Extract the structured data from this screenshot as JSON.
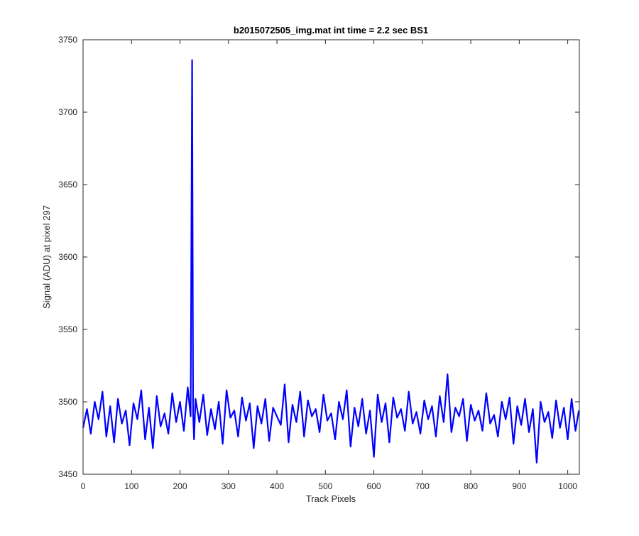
{
  "chart_data": {
    "type": "line",
    "title": "b2015072505_img.mat int time = 2.2 sec   BS1",
    "xlabel": "Track Pixels",
    "ylabel": "Signal (ADU) at pixel 297",
    "xlim": [
      0,
      1024
    ],
    "ylim": [
      3450,
      3750
    ],
    "xticks": [
      "0",
      "100",
      "200",
      "300",
      "400",
      "500",
      "600",
      "700",
      "800",
      "900",
      "1000"
    ],
    "yticks": [
      "3450",
      "3500",
      "3550",
      "3600",
      "3650",
      "3700",
      "3750"
    ],
    "grid": false,
    "legend": "none",
    "series": [
      {
        "color": "#0000ff",
        "x": [
          0,
          8,
          16,
          24,
          32,
          40,
          48,
          56,
          64,
          72,
          80,
          88,
          96,
          104,
          112,
          120,
          128,
          136,
          144,
          152,
          160,
          168,
          176,
          184,
          192,
          200,
          208,
          216,
          222,
          225,
          227,
          229,
          232,
          240,
          248,
          256,
          264,
          272,
          280,
          288,
          296,
          304,
          312,
          320,
          328,
          336,
          344,
          352,
          360,
          368,
          376,
          384,
          392,
          400,
          408,
          416,
          424,
          432,
          440,
          448,
          456,
          464,
          472,
          480,
          488,
          496,
          504,
          512,
          520,
          528,
          536,
          544,
          552,
          560,
          568,
          576,
          584,
          592,
          600,
          608,
          616,
          624,
          632,
          640,
          648,
          656,
          664,
          672,
          680,
          688,
          696,
          704,
          712,
          720,
          728,
          736,
          744,
          752,
          760,
          768,
          776,
          784,
          792,
          800,
          808,
          816,
          824,
          832,
          840,
          848,
          856,
          864,
          872,
          880,
          888,
          896,
          904,
          912,
          920,
          928,
          936,
          944,
          952,
          960,
          968,
          976,
          984,
          992,
          1000,
          1008,
          1016,
          1023
        ],
        "y": [
          3482,
          3495,
          3478,
          3500,
          3488,
          3507,
          3476,
          3497,
          3472,
          3502,
          3485,
          3494,
          3470,
          3499,
          3488,
          3508,
          3474,
          3496,
          3468,
          3504,
          3483,
          3492,
          3478,
          3506,
          3486,
          3500,
          3480,
          3510,
          3490,
          3736,
          3492,
          3474,
          3502,
          3486,
          3505,
          3477,
          3495,
          3481,
          3500,
          3471,
          3508,
          3489,
          3494,
          3476,
          3503,
          3487,
          3499,
          3468,
          3497,
          3485,
          3502,
          3473,
          3496,
          3490,
          3484,
          3512,
          3472,
          3498,
          3486,
          3507,
          3476,
          3501,
          3490,
          3495,
          3479,
          3505,
          3487,
          3492,
          3474,
          3500,
          3488,
          3508,
          3469,
          3496,
          3483,
          3502,
          3478,
          3494,
          3462,
          3505,
          3486,
          3499,
          3472,
          3503,
          3489,
          3495,
          3480,
          3507,
          3485,
          3493,
          3478,
          3501,
          3488,
          3497,
          3476,
          3504,
          3486,
          3519,
          3479,
          3496,
          3490,
          3502,
          3473,
          3498,
          3487,
          3494,
          3480,
          3506,
          3485,
          3491,
          3476,
          3500,
          3488,
          3503,
          3471,
          3497,
          3484,
          3502,
          3479,
          3495,
          3458,
          3500,
          3486,
          3493,
          3475,
          3501,
          3482,
          3496,
          3474,
          3502,
          3480,
          3494
        ]
      }
    ]
  }
}
